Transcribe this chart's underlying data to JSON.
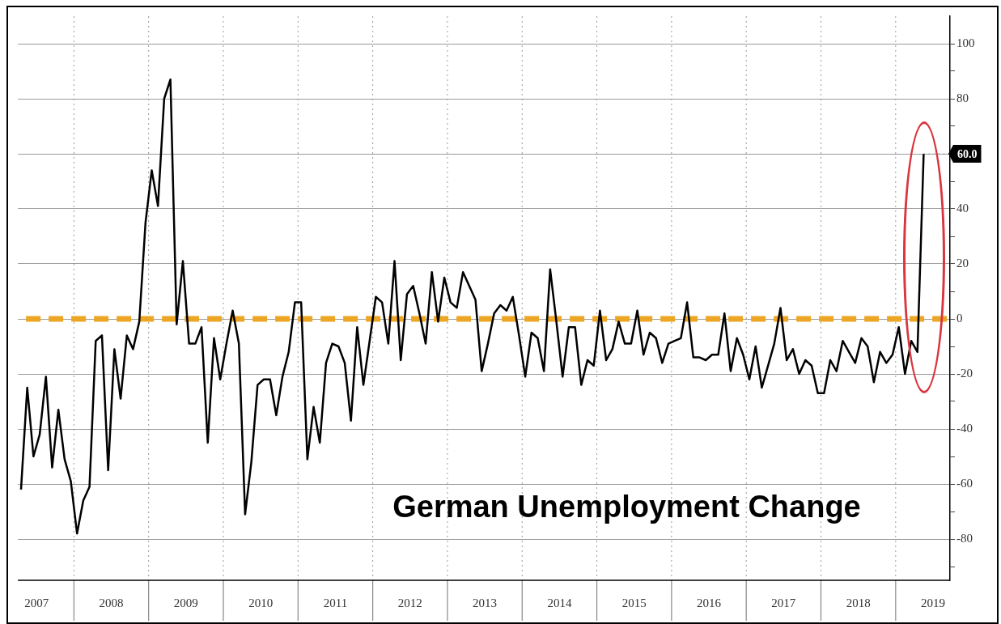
{
  "chart_data": {
    "type": "line",
    "title": "German Unemployment Change",
    "x": [
      "2007-04",
      "2007-05",
      "2007-06",
      "2007-07",
      "2007-08",
      "2007-09",
      "2007-10",
      "2007-11",
      "2007-12",
      "2008-01",
      "2008-02",
      "2008-03",
      "2008-04",
      "2008-05",
      "2008-06",
      "2008-07",
      "2008-08",
      "2008-09",
      "2008-10",
      "2008-11",
      "2008-12",
      "2009-01",
      "2009-02",
      "2009-03",
      "2009-04",
      "2009-05",
      "2009-06",
      "2009-07",
      "2009-08",
      "2009-09",
      "2009-10",
      "2009-11",
      "2009-12",
      "2010-01",
      "2010-02",
      "2010-03",
      "2010-04",
      "2010-05",
      "2010-06",
      "2010-07",
      "2010-08",
      "2010-09",
      "2010-10",
      "2010-11",
      "2010-12",
      "2011-01",
      "2011-02",
      "2011-03",
      "2011-04",
      "2011-05",
      "2011-06",
      "2011-07",
      "2011-08",
      "2011-09",
      "2011-10",
      "2011-11",
      "2011-12",
      "2012-01",
      "2012-02",
      "2012-03",
      "2012-04",
      "2012-05",
      "2012-06",
      "2012-07",
      "2012-08",
      "2012-09",
      "2012-10",
      "2012-11",
      "2012-12",
      "2013-01",
      "2013-02",
      "2013-03",
      "2013-04",
      "2013-05",
      "2013-06",
      "2013-07",
      "2013-08",
      "2013-09",
      "2013-10",
      "2013-11",
      "2013-12",
      "2014-01",
      "2014-02",
      "2014-03",
      "2014-04",
      "2014-05",
      "2014-06",
      "2014-07",
      "2014-08",
      "2014-09",
      "2014-10",
      "2014-11",
      "2014-12",
      "2015-01",
      "2015-02",
      "2015-03",
      "2015-04",
      "2015-05",
      "2015-06",
      "2015-07",
      "2015-08",
      "2015-09",
      "2015-10",
      "2015-11",
      "2015-12",
      "2016-01",
      "2016-02",
      "2016-03",
      "2016-04",
      "2016-05",
      "2016-06",
      "2016-07",
      "2016-08",
      "2016-09",
      "2016-10",
      "2016-11",
      "2016-12",
      "2017-01",
      "2017-02",
      "2017-03",
      "2017-04",
      "2017-05",
      "2017-06",
      "2017-07",
      "2017-08",
      "2017-09",
      "2017-10",
      "2017-11",
      "2017-12",
      "2018-01",
      "2018-02",
      "2018-03",
      "2018-04",
      "2018-05",
      "2018-06",
      "2018-07",
      "2018-08",
      "2018-09",
      "2018-10",
      "2018-11",
      "2018-12",
      "2019-01",
      "2019-02",
      "2019-03",
      "2019-04",
      "2019-05"
    ],
    "series": [
      {
        "color": "#000000",
        "values": [
          -62,
          -25,
          -50,
          -42,
          -21,
          -54,
          -33,
          -51,
          -59,
          -78,
          -66,
          -61,
          -8,
          -6,
          -55,
          -11,
          -29,
          -6,
          -11,
          -1,
          35,
          54,
          41,
          80,
          87,
          -2,
          21,
          -9,
          -9,
          -3,
          -45,
          -7,
          -22,
          -9,
          3,
          -9,
          -71,
          -52,
          -24,
          -22,
          -22,
          -35,
          -21,
          -12,
          6,
          6,
          -51,
          -32,
          -45,
          -16,
          -9,
          -10,
          -16,
          -37,
          -3,
          -24,
          -8,
          8,
          6,
          -9,
          21,
          -15,
          9,
          12,
          2,
          -9,
          17,
          -1,
          15,
          6,
          4,
          17,
          12,
          7,
          -19,
          -9,
          2,
          5,
          3,
          8,
          -6,
          -21,
          -5,
          -7,
          -19,
          18,
          -1,
          -21,
          -3,
          -3,
          -24,
          -15,
          -17,
          3,
          -15,
          -11,
          -1,
          -9,
          -9,
          3,
          -13,
          -5,
          -7,
          -16,
          -9,
          -8,
          -7,
          6,
          -14,
          -14,
          -15,
          -13,
          -13,
          2,
          -19,
          -7,
          -13,
          -22,
          -10,
          -25,
          -17,
          -9,
          4,
          -15,
          -11,
          -20,
          -15,
          -17,
          -27,
          -27,
          -15,
          -19,
          -8,
          -12,
          -16,
          -7,
          -10,
          -23,
          -12,
          -16,
          -13,
          -3,
          -20,
          -8,
          -12,
          60
        ]
      }
    ],
    "xlim": [
      "2007-04-01",
      "2019-09-23"
    ],
    "xticks": [
      {
        "value": "2007-07-01",
        "label": "2007"
      },
      {
        "value": "2008",
        "label": null
      },
      {
        "value": "2008-07-01",
        "label": "2008"
      },
      {
        "value": "2009",
        "label": null
      },
      {
        "value": "2009-07-01",
        "label": "2009"
      },
      {
        "value": "2010",
        "label": null
      },
      {
        "value": "2010-07-01",
        "label": "2010"
      },
      {
        "value": "2011",
        "label": null
      },
      {
        "value": "2011-07-01",
        "label": "2011"
      },
      {
        "value": "2012",
        "label": null
      },
      {
        "value": "2012-07-01",
        "label": "2012"
      },
      {
        "value": "2013",
        "label": null
      },
      {
        "value": "2013-07-01",
        "label": "2013"
      },
      {
        "value": "2014",
        "label": null
      },
      {
        "value": "2014-07-01",
        "label": "2014"
      },
      {
        "value": "2015",
        "label": null
      },
      {
        "value": "2015-07-01",
        "label": "2015"
      },
      {
        "value": "2016",
        "label": null
      },
      {
        "value": "2016-07-01",
        "label": "2016"
      },
      {
        "value": "2017",
        "label": null
      },
      {
        "value": "2017-07-01",
        "label": "2017"
      },
      {
        "value": "2018",
        "label": null
      },
      {
        "value": "2018-07-01",
        "label": "2018"
      },
      {
        "value": "2019",
        "label": null
      },
      {
        "value": "2019-07-01",
        "label": "2019"
      }
    ],
    "ylim": [
      -95,
      110
    ],
    "yticks": [
      {
        "value": -90,
        "label": null
      },
      -80,
      {
        "value": -70,
        "label": null
      },
      -60,
      {
        "value": -50,
        "label": null
      },
      -40,
      {
        "value": -30,
        "label": null
      },
      -20,
      {
        "value": -10,
        "label": null
      },
      0,
      {
        "value": 10,
        "label": null
      },
      20,
      {
        "value": 30,
        "label": null
      },
      40,
      {
        "value": 50,
        "label": null
      },
      {
        "value": 60,
        "label": null
      },
      {
        "value": 70,
        "label": null
      },
      80,
      {
        "value": 90,
        "label": null
      },
      100
    ],
    "ref_lines": [
      {
        "axis": "y",
        "value": 0,
        "color": "#eca623",
        "line_style": "dashed"
      }
    ],
    "annotations": [
      {
        "text": "60.0",
        "x": "2019-05",
        "y": 60
      }
    ],
    "grid": true,
    "marker": "none",
    "line_style": "solid"
  }
}
